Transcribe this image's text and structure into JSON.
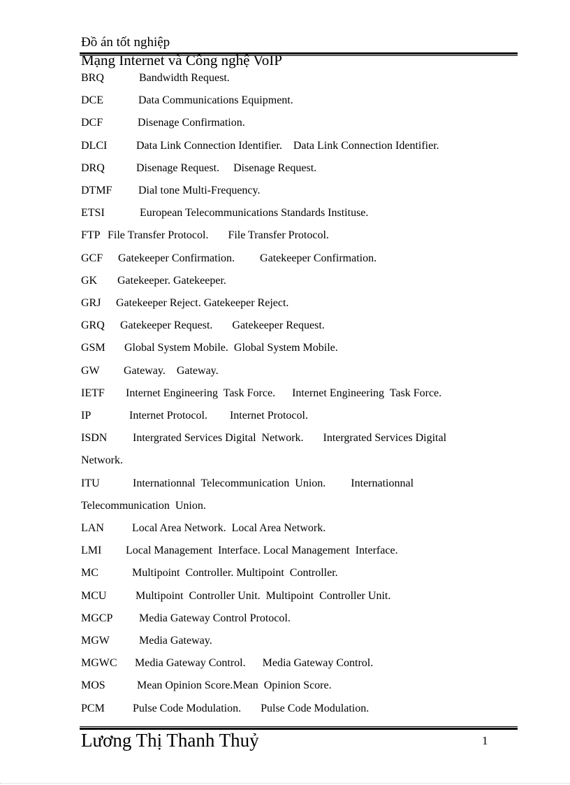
{
  "header": {
    "title": "Đồ án tốt nghiệp",
    "subtitle": "Mạng Internet và Công nghệ VoIP"
  },
  "entries": [
    {
      "abbr": "BRQ",
      "def": "Bandwidth Request."
    },
    {
      "abbr": "DCE",
      "def": "Data Communications Equipment."
    },
    {
      "abbr": "DCF",
      "def": "Disenage Confirmation."
    },
    {
      "abbr": "DLCI",
      "def": "Data Link Connection Identifier.    Data Link Connection Identifier."
    },
    {
      "abbr": "DRQ",
      "def": "Disenage Request.     Disenage Request."
    },
    {
      "abbr": "DTMF",
      "def": "Dial tone Multi-Frequency."
    },
    {
      "abbr": "ETSI",
      "def": "European Telecommunications Standards Instituse."
    },
    {
      "abbr": "FTP",
      "def": "File Transfer Protocol.       File Transfer Protocol."
    },
    {
      "abbr": "GCF",
      "def": "Gatekeeper Confirmation.         Gatekeeper Confirmation."
    },
    {
      "abbr": "GK",
      "def": "Gatekeeper. Gatekeeper."
    },
    {
      "abbr": "GRJ",
      "def": "Gatekeeper Reject. Gatekeeper Reject."
    },
    {
      "abbr": "GRQ",
      "def": "Gatekeeper Request.       Gatekeeper Request."
    },
    {
      "abbr": "GSM",
      "def": "Global System Mobile.  Global System Mobile."
    },
    {
      "abbr": "GW",
      "def": "Gateway.    Gateway."
    },
    {
      "abbr": "IETF",
      "def": "Internet Engineering  Task Force.      Internet Engineering  Task Force."
    },
    {
      "abbr": "IP",
      "def": "Internet Protocol.        Internet Protocol."
    },
    {
      "abbr": "ISDN",
      "def": "Intergrated Services Digital  Network.       Intergrated Services Digital",
      "cont": "Network."
    },
    {
      "abbr": "ITU",
      "def": "Internationnal  Telecommunication  Union.         Internationnal",
      "cont": "Telecommunication  Union."
    },
    {
      "abbr": "LAN",
      "def": "Local Area Network.  Local Area Network."
    },
    {
      "abbr": "LMI",
      "def": "Local Management  Interface. Local Management  Interface."
    },
    {
      "abbr": "MC",
      "def": "Multipoint  Controller. Multipoint  Controller."
    },
    {
      "abbr": "MCU",
      "def": "Multipoint  Controller Unit.  Multipoint  Controller Unit."
    },
    {
      "abbr": "MGCP",
      "def": "Media Gateway Control Protocol."
    },
    {
      "abbr": "MGW",
      "def": "Media Gateway."
    },
    {
      "abbr": "MGWC",
      "def": "Media Gateway Control.      Media Gateway Control."
    },
    {
      "abbr": "MOS",
      "def": "Mean Opinion Score.Mean  Opinion Score."
    },
    {
      "abbr": "PCM",
      "def": "Pulse Code Modulation.       Pulse Code Modulation."
    }
  ],
  "footer": {
    "author": "Lương Thị Thanh Thuỷ",
    "page_number": "1"
  }
}
